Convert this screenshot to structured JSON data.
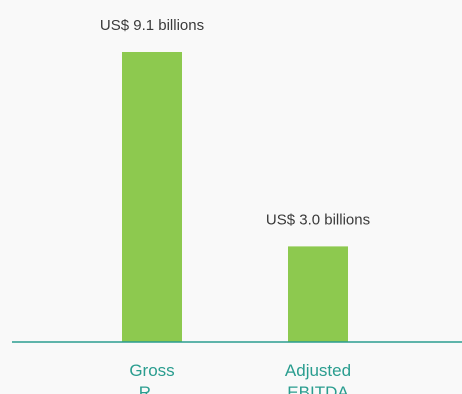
{
  "chart_data": {
    "type": "bar",
    "categories": [
      {
        "lines": [
          "Gross",
          "R..."
        ]
      },
      {
        "lines": [
          "Adjusted",
          "EBITDA"
        ]
      }
    ],
    "values": [
      9.1,
      3.0
    ],
    "data_labels": [
      "US$ 9.1 billions",
      "US$ 3.0 billions"
    ],
    "unit": "US$ billions",
    "ylim": [
      0,
      9.1
    ],
    "grid": false,
    "legend": "none",
    "colors": {
      "bar": "#8dc94f",
      "axis": "#2a9d8f",
      "category_text": "#2a9d8f",
      "label_text": "#3a3a3a",
      "background": "#f9f9f9"
    }
  }
}
